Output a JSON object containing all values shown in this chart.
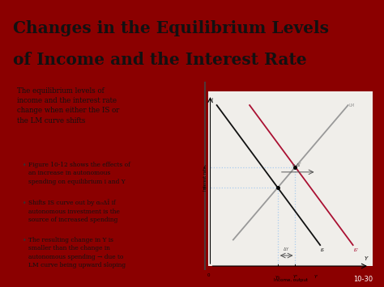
{
  "title_line1": "Changes in the Equilibrium Levels",
  "title_line2": "of Income and the Interest Rate",
  "title_bg": "#ffffff",
  "title_border_left_color": "#8B0000",
  "slide_outer_bg": "#8B0000",
  "content_bg": "#ffffff",
  "bottom_bar_color": "#1a1a1a",
  "slide_number": "10-30",
  "bullet_color": "#8B0000",
  "text_color": "#111111",
  "graph_bg": "#f0eeea",
  "lm_color": "#999999",
  "is_color": "#111111",
  "is_new_color": "#aa1133",
  "dotted_color": "#aaccee",
  "divider_color": "#111111"
}
